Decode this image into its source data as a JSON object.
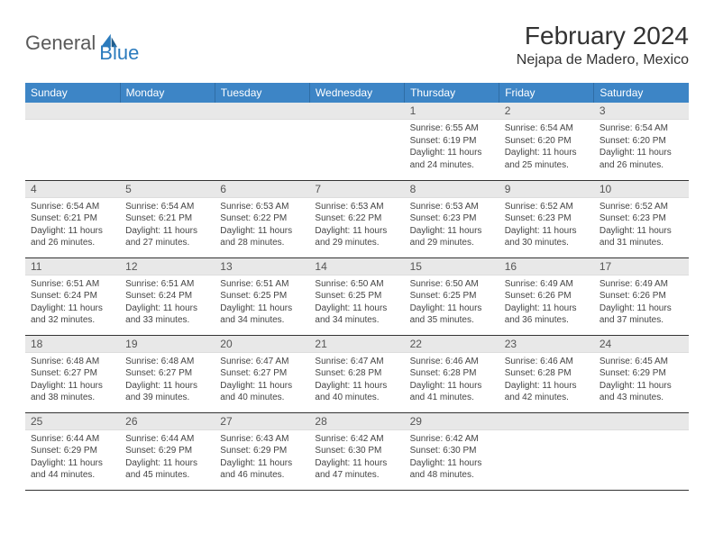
{
  "brand": {
    "part1": "General",
    "part2": "Blue"
  },
  "title": "February 2024",
  "location": "Nejapa de Madero, Mexico",
  "colors": {
    "header_bg": "#3d85c6",
    "header_text": "#ffffff",
    "daynum_bg": "#e8e8e8",
    "border": "#333333",
    "brand_blue": "#2b7bbd",
    "brand_gray": "#5a5a5a",
    "text": "#444444"
  },
  "weekdays": [
    "Sunday",
    "Monday",
    "Tuesday",
    "Wednesday",
    "Thursday",
    "Friday",
    "Saturday"
  ],
  "weeks": [
    [
      null,
      null,
      null,
      null,
      {
        "n": "1",
        "sr": "6:55 AM",
        "ss": "6:19 PM",
        "dl": "11 hours and 24 minutes."
      },
      {
        "n": "2",
        "sr": "6:54 AM",
        "ss": "6:20 PM",
        "dl": "11 hours and 25 minutes."
      },
      {
        "n": "3",
        "sr": "6:54 AM",
        "ss": "6:20 PM",
        "dl": "11 hours and 26 minutes."
      }
    ],
    [
      {
        "n": "4",
        "sr": "6:54 AM",
        "ss": "6:21 PM",
        "dl": "11 hours and 26 minutes."
      },
      {
        "n": "5",
        "sr": "6:54 AM",
        "ss": "6:21 PM",
        "dl": "11 hours and 27 minutes."
      },
      {
        "n": "6",
        "sr": "6:53 AM",
        "ss": "6:22 PM",
        "dl": "11 hours and 28 minutes."
      },
      {
        "n": "7",
        "sr": "6:53 AM",
        "ss": "6:22 PM",
        "dl": "11 hours and 29 minutes."
      },
      {
        "n": "8",
        "sr": "6:53 AM",
        "ss": "6:23 PM",
        "dl": "11 hours and 29 minutes."
      },
      {
        "n": "9",
        "sr": "6:52 AM",
        "ss": "6:23 PM",
        "dl": "11 hours and 30 minutes."
      },
      {
        "n": "10",
        "sr": "6:52 AM",
        "ss": "6:23 PM",
        "dl": "11 hours and 31 minutes."
      }
    ],
    [
      {
        "n": "11",
        "sr": "6:51 AM",
        "ss": "6:24 PM",
        "dl": "11 hours and 32 minutes."
      },
      {
        "n": "12",
        "sr": "6:51 AM",
        "ss": "6:24 PM",
        "dl": "11 hours and 33 minutes."
      },
      {
        "n": "13",
        "sr": "6:51 AM",
        "ss": "6:25 PM",
        "dl": "11 hours and 34 minutes."
      },
      {
        "n": "14",
        "sr": "6:50 AM",
        "ss": "6:25 PM",
        "dl": "11 hours and 34 minutes."
      },
      {
        "n": "15",
        "sr": "6:50 AM",
        "ss": "6:25 PM",
        "dl": "11 hours and 35 minutes."
      },
      {
        "n": "16",
        "sr": "6:49 AM",
        "ss": "6:26 PM",
        "dl": "11 hours and 36 minutes."
      },
      {
        "n": "17",
        "sr": "6:49 AM",
        "ss": "6:26 PM",
        "dl": "11 hours and 37 minutes."
      }
    ],
    [
      {
        "n": "18",
        "sr": "6:48 AM",
        "ss": "6:27 PM",
        "dl": "11 hours and 38 minutes."
      },
      {
        "n": "19",
        "sr": "6:48 AM",
        "ss": "6:27 PM",
        "dl": "11 hours and 39 minutes."
      },
      {
        "n": "20",
        "sr": "6:47 AM",
        "ss": "6:27 PM",
        "dl": "11 hours and 40 minutes."
      },
      {
        "n": "21",
        "sr": "6:47 AM",
        "ss": "6:28 PM",
        "dl": "11 hours and 40 minutes."
      },
      {
        "n": "22",
        "sr": "6:46 AM",
        "ss": "6:28 PM",
        "dl": "11 hours and 41 minutes."
      },
      {
        "n": "23",
        "sr": "6:46 AM",
        "ss": "6:28 PM",
        "dl": "11 hours and 42 minutes."
      },
      {
        "n": "24",
        "sr": "6:45 AM",
        "ss": "6:29 PM",
        "dl": "11 hours and 43 minutes."
      }
    ],
    [
      {
        "n": "25",
        "sr": "6:44 AM",
        "ss": "6:29 PM",
        "dl": "11 hours and 44 minutes."
      },
      {
        "n": "26",
        "sr": "6:44 AM",
        "ss": "6:29 PM",
        "dl": "11 hours and 45 minutes."
      },
      {
        "n": "27",
        "sr": "6:43 AM",
        "ss": "6:29 PM",
        "dl": "11 hours and 46 minutes."
      },
      {
        "n": "28",
        "sr": "6:42 AM",
        "ss": "6:30 PM",
        "dl": "11 hours and 47 minutes."
      },
      {
        "n": "29",
        "sr": "6:42 AM",
        "ss": "6:30 PM",
        "dl": "11 hours and 48 minutes."
      },
      null,
      null
    ]
  ],
  "labels": {
    "sunrise": "Sunrise:",
    "sunset": "Sunset:",
    "daylight": "Daylight:"
  }
}
